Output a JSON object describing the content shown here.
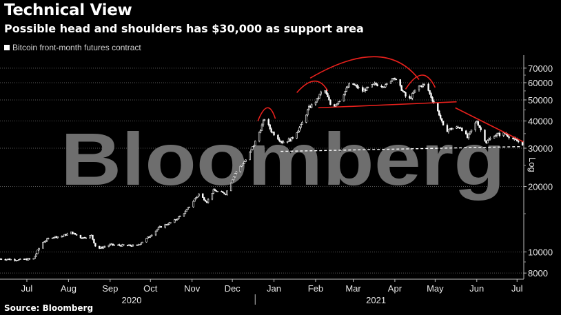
{
  "title": "Technical View",
  "subtitle": "Possible head and shoulders has $30,000 as support area",
  "source": "Source: Bloomberg",
  "watermark": "Bloomberg",
  "colors": {
    "background": "#000000",
    "candles": "#ffffff",
    "pattern": "#e8201c",
    "support": "#ffffff"
  },
  "chart_data": {
    "type": "candlestick",
    "legend": [
      "Bitcoin front-month futures contract"
    ],
    "legend_position": "top-left",
    "yscale": "log",
    "ylabel": "Log",
    "ylim": [
      7500,
      78000
    ],
    "yticks": [
      8000,
      10000,
      20000,
      30000,
      40000,
      50000,
      60000,
      70000
    ],
    "ytick_labels": [
      "8000",
      "10000",
      "20000",
      "30000",
      "40000",
      "50000",
      "60000",
      "70000"
    ],
    "xlim": [
      "2020-06-25",
      "2021-07-20"
    ],
    "xticks": [
      {
        "date": "2020-07-15",
        "label": "Jul"
      },
      {
        "date": "2020-08-15",
        "label": "Aug"
      },
      {
        "date": "2020-09-15",
        "label": "Sep"
      },
      {
        "date": "2020-10-15",
        "label": "Oct"
      },
      {
        "date": "2020-11-15",
        "label": "Nov"
      },
      {
        "date": "2020-12-15",
        "label": "Dec"
      },
      {
        "date": "2021-01-15",
        "label": "Jan"
      },
      {
        "date": "2021-02-15",
        "label": "Feb"
      },
      {
        "date": "2021-03-15",
        "label": "Mar"
      },
      {
        "date": "2021-04-15",
        "label": "Apr"
      },
      {
        "date": "2021-05-15",
        "label": "May"
      },
      {
        "date": "2021-06-15",
        "label": "Jun"
      },
      {
        "date": "2021-07-15",
        "label": "Jul"
      }
    ],
    "year_labels": [
      {
        "date": "2020-10-01",
        "label": "2020"
      },
      {
        "date": "2021-04-01",
        "label": "2021"
      }
    ],
    "year_divider": "2021-01-01",
    "grid": "horizontal dotted",
    "series": [
      {
        "name": "Bitcoin front-month futures contract",
        "price_path": [
          [
            "2020-06-25",
            9300
          ],
          [
            "2020-07-10",
            9200
          ],
          [
            "2020-07-20",
            9300
          ],
          [
            "2020-07-26",
            11000
          ],
          [
            "2020-08-02",
            11700
          ],
          [
            "2020-08-10",
            11800
          ],
          [
            "2020-08-17",
            12300
          ],
          [
            "2020-08-25",
            11600
          ],
          [
            "2020-09-01",
            11900
          ],
          [
            "2020-09-05",
            10300
          ],
          [
            "2020-09-15",
            10800
          ],
          [
            "2020-09-25",
            10700
          ],
          [
            "2020-10-05",
            10700
          ],
          [
            "2020-10-12",
            11500
          ],
          [
            "2020-10-22",
            13000
          ],
          [
            "2020-11-01",
            13800
          ],
          [
            "2020-11-10",
            15300
          ],
          [
            "2020-11-20",
            18500
          ],
          [
            "2020-11-26",
            17000
          ],
          [
            "2020-12-01",
            19200
          ],
          [
            "2020-12-10",
            18500
          ],
          [
            "2020-12-17",
            23000
          ],
          [
            "2020-12-26",
            27000
          ],
          [
            "2021-01-02",
            33000
          ],
          [
            "2021-01-08",
            41000
          ],
          [
            "2021-01-13",
            36000
          ],
          [
            "2021-01-21",
            32000
          ],
          [
            "2021-01-28",
            33000
          ],
          [
            "2021-02-04",
            38000
          ],
          [
            "2021-02-10",
            46000
          ],
          [
            "2021-02-16",
            50000
          ],
          [
            "2021-02-21",
            57000
          ],
          [
            "2021-02-27",
            46000
          ],
          [
            "2021-03-05",
            50000
          ],
          [
            "2021-03-13",
            60000
          ],
          [
            "2021-03-22",
            55000
          ],
          [
            "2021-03-31",
            59000
          ],
          [
            "2021-04-08",
            58000
          ],
          [
            "2021-04-14",
            64000
          ],
          [
            "2021-04-20",
            56000
          ],
          [
            "2021-04-25",
            49500
          ],
          [
            "2021-05-02",
            57500
          ],
          [
            "2021-05-08",
            59000
          ],
          [
            "2021-05-13",
            50000
          ],
          [
            "2021-05-18",
            43000
          ],
          [
            "2021-05-22",
            36000
          ],
          [
            "2021-05-28",
            37000
          ],
          [
            "2021-06-03",
            37500
          ],
          [
            "2021-06-08",
            33500
          ],
          [
            "2021-06-15",
            40000
          ],
          [
            "2021-06-22",
            32000
          ],
          [
            "2021-06-28",
            34500
          ],
          [
            "2021-07-06",
            35000
          ],
          [
            "2021-07-14",
            32500
          ],
          [
            "2021-07-19",
            31500
          ]
        ]
      }
    ],
    "annotations": [
      {
        "type": "arc",
        "label": "left shoulder (Jan)",
        "points": [
          [
            "2021-01-03",
            40000
          ],
          [
            "2021-01-10",
            46000
          ],
          [
            "2021-01-16",
            41000
          ]
        ]
      },
      {
        "type": "arc",
        "label": "left shoulder (Feb)",
        "points": [
          [
            "2021-02-01",
            54000
          ],
          [
            "2021-02-14",
            61000
          ],
          [
            "2021-02-24",
            55000
          ]
        ]
      },
      {
        "type": "arc",
        "label": "head",
        "points": [
          [
            "2021-02-11",
            63000
          ],
          [
            "2021-03-31",
            79000
          ],
          [
            "2021-05-03",
            62000
          ]
        ]
      },
      {
        "type": "arc",
        "label": "right shoulder",
        "points": [
          [
            "2021-04-23",
            56000
          ],
          [
            "2021-05-05",
            65000
          ],
          [
            "2021-05-15",
            57000
          ]
        ]
      },
      {
        "type": "line",
        "label": "neckline",
        "points": [
          [
            "2021-02-17",
            46000
          ],
          [
            "2021-05-31",
            49000
          ]
        ]
      },
      {
        "type": "line",
        "label": "descending resistance",
        "points": [
          [
            "2021-05-30",
            46000
          ],
          [
            "2021-07-20",
            32000
          ]
        ]
      },
      {
        "type": "dashed",
        "label": "support",
        "points": [
          [
            "2021-01-20",
            29000
          ],
          [
            "2021-07-18",
            30500
          ]
        ]
      }
    ]
  }
}
